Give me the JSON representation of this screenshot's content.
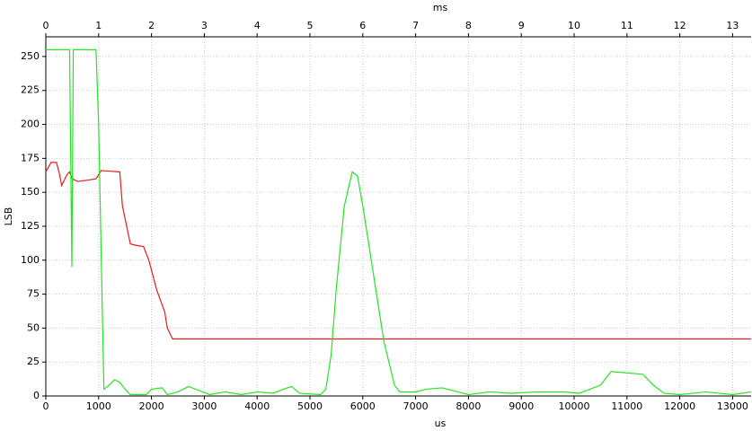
{
  "chart_data": {
    "type": "line",
    "x_label": "us",
    "x2_label": "ms",
    "y_label": "LSB",
    "xlim": [
      0,
      13350
    ],
    "xticks": [
      0,
      1000,
      2000,
      3000,
      4000,
      5000,
      6000,
      7000,
      8000,
      9000,
      10000,
      11000,
      12000,
      13000
    ],
    "x2lim": [
      0,
      13.35
    ],
    "x2ticks": [
      0,
      1,
      2,
      3,
      4,
      5,
      6,
      7,
      8,
      9,
      10,
      11,
      12,
      13
    ],
    "ylim": [
      0,
      264.5
    ],
    "yticks": [
      0,
      25,
      50,
      75,
      100,
      125,
      150,
      175,
      200,
      225,
      250
    ],
    "grid": true,
    "series": [
      {
        "color": "#e8191e",
        "x": [
          0,
          100,
          200,
          250,
          300,
          400,
          450,
          500,
          600,
          800,
          950,
          1000,
          1050,
          1400,
          1450,
          1600,
          1700,
          1850,
          1950,
          2100,
          2250,
          2300,
          2400,
          13350
        ],
        "values": [
          165,
          172,
          172,
          165,
          155,
          163,
          165,
          160,
          158,
          159,
          160,
          163,
          166,
          165,
          140,
          112,
          111,
          110,
          100,
          78,
          62,
          50,
          42,
          42
        ]
      },
      {
        "color": "#22e622",
        "x": [
          0,
          450,
          493,
          520,
          950,
          1000,
          1050,
          1100,
          1200,
          1300,
          1400,
          1500,
          1600,
          1900,
          2000,
          2200,
          2300,
          2500,
          2700,
          2900,
          3100,
          3400,
          3700,
          4000,
          4300,
          4500,
          4650,
          4800,
          5200,
          5300,
          5400,
          5500,
          5650,
          5800,
          5900,
          6000,
          6200,
          6400,
          6600,
          6700,
          7000,
          7200,
          7500,
          7800,
          8000,
          8400,
          8800,
          9300,
          9800,
          10100,
          10500,
          10700,
          11000,
          11300,
          11500,
          11700,
          12000,
          12500,
          13000,
          13350
        ],
        "values": [
          255,
          255,
          95,
          255,
          255,
          200,
          100,
          5,
          8,
          12,
          10,
          5,
          1,
          1,
          5,
          6,
          1,
          3,
          7,
          4,
          1,
          3,
          1,
          3,
          2,
          5,
          7,
          2,
          1,
          5,
          30,
          80,
          140,
          165,
          162,
          140,
          90,
          40,
          8,
          3,
          3,
          5,
          6,
          3,
          1,
          3,
          2,
          3,
          3,
          2,
          8,
          18,
          17,
          16,
          8,
          2,
          1,
          3,
          1,
          3
        ]
      }
    ]
  }
}
